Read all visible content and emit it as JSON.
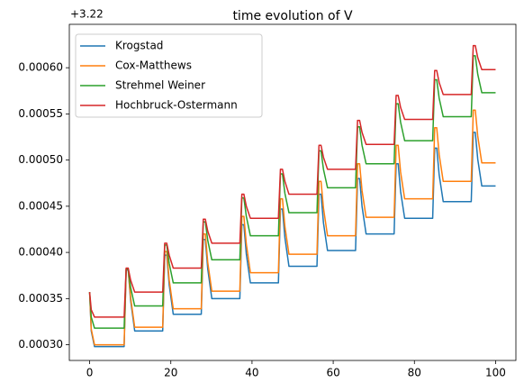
{
  "chart_data": {
    "type": "line",
    "title": "time evolution of V",
    "offset_text": "+3.22",
    "x": [
      0,
      0.4,
      1.2,
      8.5,
      9.0,
      9.5,
      10.1,
      11.1,
      18.0,
      18.5,
      19.0,
      19.6,
      20.6,
      27.5,
      28.0,
      28.5,
      29.1,
      30.1,
      37.0,
      37.5,
      38.0,
      38.6,
      39.6,
      46.5,
      47.0,
      47.5,
      48.1,
      49.1,
      56.0,
      56.5,
      57.0,
      57.6,
      58.6,
      65.5,
      66.0,
      66.5,
      67.1,
      68.1,
      75.0,
      75.5,
      76.0,
      76.6,
      77.6,
      84.5,
      85.0,
      85.5,
      86.1,
      87.1,
      94.0,
      94.5,
      95.0,
      95.6,
      96.6,
      100
    ],
    "series": [
      {
        "name": "Krogstad",
        "color": "#1f77b4",
        "values": [
          0.000357,
          0.000315,
          0.000298,
          0.000298,
          0.000381,
          0.000381,
          0.000348,
          0.000315,
          0.000315,
          0.000397,
          0.000397,
          0.000365,
          0.000333,
          0.000333,
          0.000414,
          0.000414,
          0.000382,
          0.00035,
          0.00035,
          0.00043,
          0.00043,
          0.000398,
          0.000367,
          0.000367,
          0.000447,
          0.000447,
          0.000416,
          0.000385,
          0.000385,
          0.000463,
          0.000463,
          0.000432,
          0.000402,
          0.000402,
          0.00048,
          0.00048,
          0.00045,
          0.00042,
          0.00042,
          0.000496,
          0.000496,
          0.000466,
          0.000437,
          0.000437,
          0.000513,
          0.000513,
          0.000484,
          0.000455,
          0.000455,
          0.00053,
          0.00053,
          0.000501,
          0.000472,
          0.000472
        ]
      },
      {
        "name": "Cox-Matthews",
        "color": "#ff7f0e",
        "values": [
          0.000357,
          0.000317,
          0.0003,
          0.0003,
          0.000382,
          0.000382,
          0.000351,
          0.000319,
          0.000319,
          0.000401,
          0.000401,
          0.00037,
          0.000339,
          0.000339,
          0.00042,
          0.00042,
          0.000389,
          0.000358,
          0.000358,
          0.000439,
          0.000439,
          0.000409,
          0.000378,
          0.000378,
          0.000458,
          0.000458,
          0.000428,
          0.000398,
          0.000398,
          0.000477,
          0.000477,
          0.000448,
          0.000418,
          0.000418,
          0.000496,
          0.000496,
          0.000467,
          0.000438,
          0.000438,
          0.000516,
          0.000516,
          0.000487,
          0.000458,
          0.000458,
          0.000535,
          0.000535,
          0.000506,
          0.000477,
          0.000477,
          0.000554,
          0.000554,
          0.000526,
          0.000497,
          0.000497
        ]
      },
      {
        "name": "Strehmel Weiner",
        "color": "#2ca02c",
        "values": [
          0.000357,
          0.00033,
          0.000318,
          0.000318,
          0.000382,
          0.000382,
          0.000362,
          0.000342,
          0.000342,
          0.000408,
          0.000408,
          0.000388,
          0.000367,
          0.000367,
          0.000433,
          0.000433,
          0.000413,
          0.000392,
          0.000392,
          0.000459,
          0.000459,
          0.000439,
          0.000418,
          0.000418,
          0.000485,
          0.000485,
          0.000464,
          0.000443,
          0.000443,
          0.00051,
          0.00051,
          0.00049,
          0.00047,
          0.00047,
          0.000536,
          0.000536,
          0.000516,
          0.000496,
          0.000496,
          0.000561,
          0.000561,
          0.000541,
          0.000521,
          0.000521,
          0.000587,
          0.000587,
          0.000567,
          0.000547,
          0.000547,
          0.000613,
          0.000613,
          0.000593,
          0.000573,
          0.000573
        ]
      },
      {
        "name": "Hochbruck-Ostermann",
        "color": "#d62728",
        "values": [
          0.000357,
          0.000338,
          0.00033,
          0.00033,
          0.000383,
          0.000383,
          0.00037,
          0.000357,
          0.000357,
          0.00041,
          0.00041,
          0.000397,
          0.000383,
          0.000383,
          0.000436,
          0.000436,
          0.000423,
          0.00041,
          0.00041,
          0.000463,
          0.000463,
          0.00045,
          0.000437,
          0.000437,
          0.00049,
          0.00049,
          0.000477,
          0.000463,
          0.000463,
          0.000516,
          0.000516,
          0.000503,
          0.00049,
          0.00049,
          0.000543,
          0.000543,
          0.00053,
          0.000517,
          0.000517,
          0.00057,
          0.00057,
          0.000557,
          0.000544,
          0.000544,
          0.000597,
          0.000597,
          0.000584,
          0.000571,
          0.000571,
          0.000624,
          0.000624,
          0.000611,
          0.000598,
          0.000598
        ]
      }
    ],
    "xlim": [
      -5,
      105
    ],
    "xticks": [
      0,
      20,
      40,
      60,
      80,
      100
    ],
    "ylim": [
      0.000283,
      0.000647
    ],
    "yticks": [
      {
        "value": 0.0003,
        "label": "0.00030"
      },
      {
        "value": 0.00035,
        "label": "0.00035"
      },
      {
        "value": 0.0004,
        "label": "0.00040"
      },
      {
        "value": 0.00045,
        "label": "0.00045"
      },
      {
        "value": 0.0005,
        "label": "0.00050"
      },
      {
        "value": 0.00055,
        "label": "0.00055"
      },
      {
        "value": 0.0006,
        "label": "0.00060"
      }
    ],
    "legend": "upper left"
  }
}
